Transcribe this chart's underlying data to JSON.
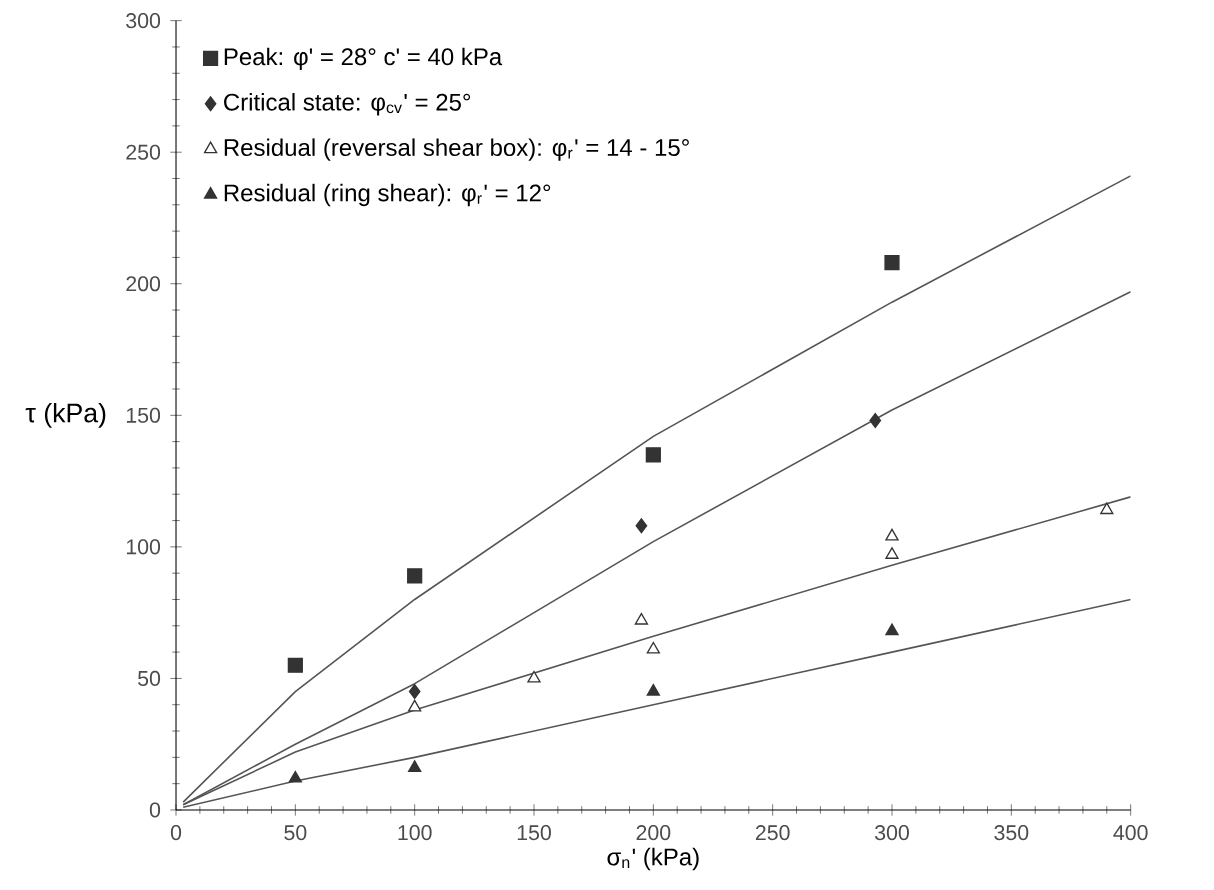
{
  "chart_data": {
    "type": "scatter",
    "xlabel": "σ$_{n}$' (kPa)",
    "ylabel": "τ (kPa)",
    "xlim": [
      0,
      400
    ],
    "ylim": [
      0,
      300
    ],
    "xticks": [
      0,
      50,
      100,
      150,
      200,
      250,
      300,
      350,
      400
    ],
    "yticks": [
      0,
      50,
      100,
      150,
      200,
      250,
      300
    ],
    "grid": false,
    "legend": "top left",
    "series": [
      {
        "name": "Peak:     φ' = 28°    c' = 40 kPa",
        "color": "#333333",
        "marker": "square",
        "x": [
          50,
          100,
          200,
          300
        ],
        "values": [
          55,
          89,
          135,
          208
        ]
      },
      {
        "name": "Critical state: φ$_{cv}$' = 25°",
        "color": "#333333",
        "marker": "diamond",
        "x": [
          100,
          195,
          293
        ],
        "values": [
          45,
          108,
          148
        ]
      },
      {
        "name": "Residual (reversal shear box): φ$_{r}$' = 14 - 15°",
        "color": "#ffffff",
        "marker": "triangle",
        "x": [
          100,
          150,
          195,
          200,
          300,
          300,
          390
        ],
        "values": [
          39,
          50,
          72,
          61,
          104,
          97,
          114
        ]
      },
      {
        "name": "Residual (ring shear): φ$_{r}$' = 12°",
        "color": "#333333",
        "marker": "triangle",
        "x": [
          50,
          100,
          200,
          300
        ],
        "values": [
          12,
          16,
          45,
          68
        ]
      },
      {
        "type": "line",
        "color": "#555555",
        "marker": "none",
        "x": [
          3,
          50,
          100,
          200,
          300,
          400
        ],
        "values": [
          3,
          45,
          80,
          142,
          193,
          241
        ]
      },
      {
        "type": "line",
        "color": "#555555",
        "marker": "none",
        "x": [
          3,
          50,
          100,
          200,
          300,
          400
        ],
        "values": [
          2,
          25,
          48,
          102,
          152,
          197
        ]
      },
      {
        "type": "line",
        "color": "#555555",
        "marker": "none",
        "x": [
          3,
          50,
          100,
          200,
          300,
          400
        ],
        "values": [
          2,
          22,
          38,
          66,
          93,
          119
        ]
      },
      {
        "type": "line",
        "color": "#555555",
        "marker": "none",
        "x": [
          3,
          50,
          100,
          200,
          300,
          400
        ],
        "values": [
          1,
          11,
          20,
          40,
          60,
          80
        ]
      }
    ]
  }
}
